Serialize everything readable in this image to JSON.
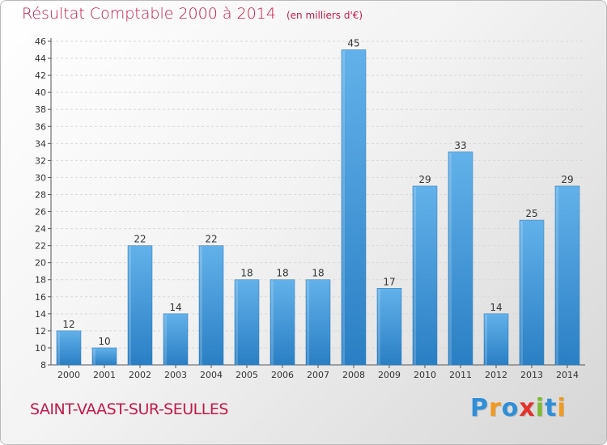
{
  "header": {
    "title": "Résultat Comptable 2000 à 2014",
    "subtitle": "(en milliers d'€)"
  },
  "footer": {
    "commune": "SAINT-VAAST-SUR-SEULLES",
    "brand": "Proxiti",
    "brand_letters": [
      {
        "char": "P",
        "color": "#2e8fd8"
      },
      {
        "char": "r",
        "color": "#f29a1e"
      },
      {
        "char": "o",
        "color": "#2e8fd8"
      },
      {
        "char": "x",
        "color": "#e2332b"
      },
      {
        "char": "i",
        "color": "#7dbb2f"
      },
      {
        "char": "t",
        "color": "#2e8fd8"
      },
      {
        "char": "i",
        "color": "#f29a1e"
      }
    ]
  },
  "colors": {
    "title": "#c21a4a",
    "bar_light": "#62b1ea",
    "bar_dark": "#2a7fc4",
    "grid": "#d9d9d9",
    "axis": "#555555"
  },
  "chart_data": {
    "type": "bar",
    "title": "Résultat Comptable 2000 à 2014",
    "subtitle": "(en milliers d'€)",
    "xlabel": "",
    "ylabel": "",
    "categories": [
      "2000",
      "2001",
      "2002",
      "2003",
      "2004",
      "2005",
      "2006",
      "2007",
      "2008",
      "2009",
      "2010",
      "2011",
      "2012",
      "2013",
      "2014"
    ],
    "values": [
      12,
      10,
      22,
      14,
      22,
      18,
      18,
      18,
      45,
      17,
      29,
      33,
      14,
      25,
      29
    ],
    "ylim": [
      8,
      46
    ],
    "ytick_step": 2,
    "grid": true,
    "data_labels": true
  }
}
